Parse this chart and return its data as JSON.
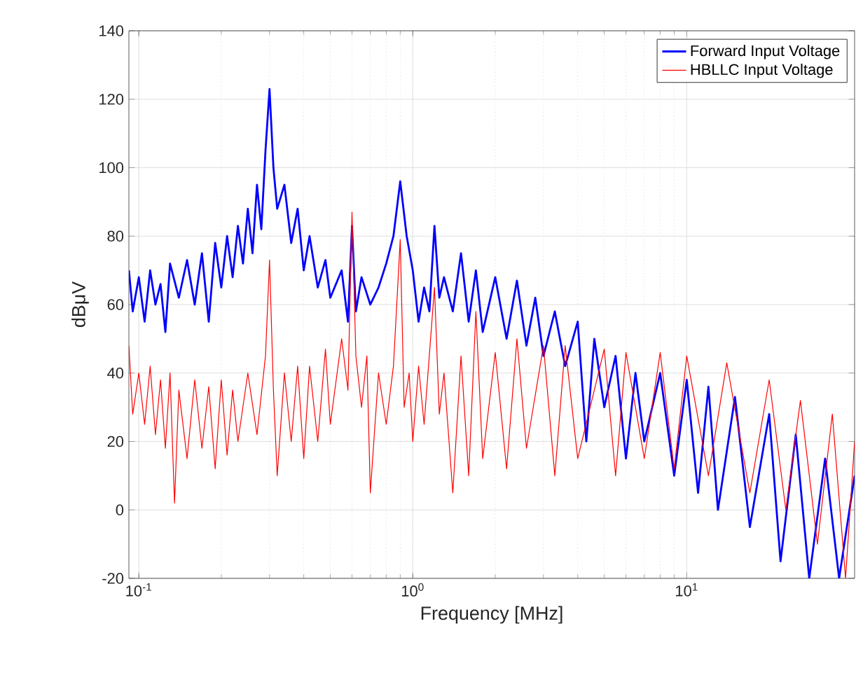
{
  "chart_data": {
    "type": "line",
    "xlabel": "Frequency [MHz]",
    "ylabel": "dBμV",
    "log": "x",
    "grid": true,
    "legend": "top right",
    "marker": "none",
    "line_style": "solid",
    "xlim": [
      0.092,
      41
    ],
    "ylim": [
      -20,
      140
    ],
    "xticks": [
      {
        "value": 0.1,
        "label": "10$^{-1}$"
      },
      {
        "value": 1,
        "label": "10$^{0}$"
      },
      {
        "value": 10,
        "label": "10$^{1}$"
      }
    ],
    "yticks": [
      -20,
      0,
      20,
      40,
      60,
      80,
      100,
      120,
      140
    ],
    "series": [
      {
        "name": "Forward Input Voltage",
        "color": "#0000ff",
        "x": [
          0.092,
          0.095,
          0.1,
          0.105,
          0.11,
          0.115,
          0.12,
          0.125,
          0.13,
          0.14,
          0.15,
          0.16,
          0.17,
          0.18,
          0.19,
          0.2,
          0.21,
          0.22,
          0.23,
          0.24,
          0.25,
          0.26,
          0.27,
          0.28,
          0.29,
          0.3,
          0.31,
          0.32,
          0.34,
          0.36,
          0.38,
          0.4,
          0.42,
          0.45,
          0.48,
          0.5,
          0.55,
          0.58,
          0.6,
          0.62,
          0.65,
          0.7,
          0.75,
          0.8,
          0.85,
          0.9,
          0.95,
          1.0,
          1.05,
          1.1,
          1.15,
          1.2,
          1.25,
          1.3,
          1.4,
          1.5,
          1.6,
          1.7,
          1.8,
          2.0,
          2.2,
          2.4,
          2.6,
          2.8,
          3.0,
          3.3,
          3.6,
          4.0,
          4.3,
          4.6,
          5.0,
          5.5,
          6.0,
          6.5,
          7,
          8,
          9,
          10,
          11,
          12,
          13,
          15,
          17,
          20,
          22,
          25,
          28,
          32,
          36,
          41
        ],
        "values": [
          70,
          58,
          68,
          55,
          70,
          60,
          66,
          52,
          72,
          62,
          73,
          60,
          75,
          55,
          78,
          65,
          80,
          68,
          83,
          72,
          88,
          75,
          95,
          82,
          105,
          123,
          100,
          88,
          95,
          78,
          88,
          70,
          80,
          65,
          73,
          62,
          70,
          55,
          83,
          58,
          68,
          60,
          65,
          72,
          80,
          96,
          80,
          70,
          55,
          65,
          58,
          83,
          62,
          68,
          58,
          75,
          55,
          70,
          52,
          68,
          50,
          67,
          48,
          62,
          45,
          58,
          42,
          55,
          20,
          50,
          30,
          45,
          15,
          40,
          20,
          40,
          10,
          38,
          5,
          36,
          0,
          33,
          -5,
          28,
          -15,
          22,
          -20,
          15,
          -20,
          10
        ]
      },
      {
        "name": "HBLLC Input Voltage",
        "color": "#ff0000",
        "x": [
          0.092,
          0.095,
          0.1,
          0.105,
          0.11,
          0.115,
          0.12,
          0.125,
          0.13,
          0.135,
          0.14,
          0.15,
          0.16,
          0.17,
          0.18,
          0.19,
          0.2,
          0.21,
          0.22,
          0.23,
          0.25,
          0.27,
          0.29,
          0.3,
          0.31,
          0.32,
          0.34,
          0.36,
          0.38,
          0.4,
          0.42,
          0.45,
          0.48,
          0.5,
          0.55,
          0.58,
          0.6,
          0.62,
          0.65,
          0.68,
          0.7,
          0.75,
          0.8,
          0.85,
          0.9,
          0.93,
          0.97,
          1.0,
          1.05,
          1.1,
          1.2,
          1.25,
          1.3,
          1.4,
          1.5,
          1.6,
          1.7,
          1.8,
          2.0,
          2.2,
          2.4,
          2.6,
          3.0,
          3.3,
          3.6,
          4.0,
          5.0,
          5.5,
          6,
          7,
          8,
          9,
          10,
          12,
          14,
          17,
          20,
          23,
          26,
          30,
          34,
          38,
          41
        ],
        "values": [
          48,
          28,
          40,
          25,
          42,
          22,
          38,
          18,
          40,
          2,
          35,
          15,
          38,
          18,
          36,
          12,
          38,
          16,
          35,
          20,
          40,
          22,
          45,
          73,
          35,
          10,
          40,
          20,
          42,
          15,
          42,
          20,
          47,
          25,
          50,
          35,
          87,
          45,
          30,
          45,
          5,
          40,
          25,
          42,
          79,
          30,
          40,
          20,
          42,
          25,
          65,
          28,
          40,
          5,
          45,
          10,
          58,
          15,
          46,
          12,
          50,
          18,
          48,
          10,
          48,
          15,
          47,
          10,
          46,
          15,
          46,
          12,
          45,
          10,
          43,
          5,
          38,
          0,
          32,
          -10,
          28,
          -20,
          20
        ]
      }
    ]
  }
}
